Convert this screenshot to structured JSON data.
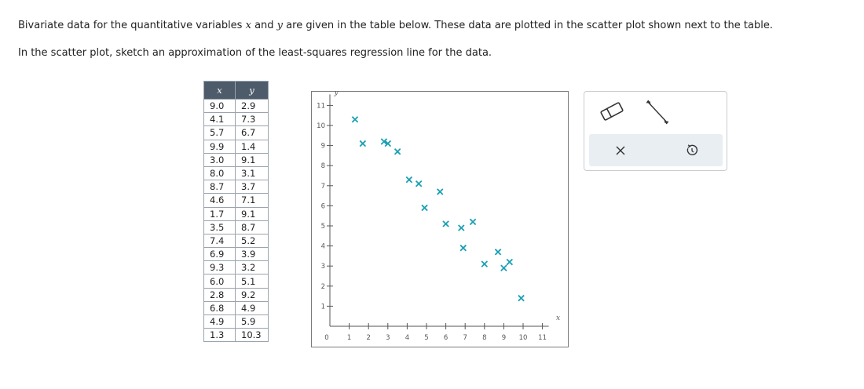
{
  "prompt": {
    "line1_prefix": "Bivariate data for the quantitative variables ",
    "var_x": "x",
    "line1_and": " and ",
    "var_y": "y",
    "line1_suffix": " are given in the table below. These data are plotted in the scatter plot shown next to the table.",
    "line2": "In the scatter plot, sketch an approximation of the least-squares regression line for the data."
  },
  "table": {
    "headers": [
      "x",
      "y"
    ],
    "rows": [
      [
        "9.0",
        "2.9"
      ],
      [
        "4.1",
        "7.3"
      ],
      [
        "5.7",
        "6.7"
      ],
      [
        "9.9",
        "1.4"
      ],
      [
        "3.0",
        "9.1"
      ],
      [
        "8.0",
        "3.1"
      ],
      [
        "8.7",
        "3.7"
      ],
      [
        "4.6",
        "7.1"
      ],
      [
        "1.7",
        "9.1"
      ],
      [
        "3.5",
        "8.7"
      ],
      [
        "7.4",
        "5.2"
      ],
      [
        "6.9",
        "3.9"
      ],
      [
        "9.3",
        "3.2"
      ],
      [
        "6.0",
        "5.1"
      ],
      [
        "2.8",
        "9.2"
      ],
      [
        "6.8",
        "4.9"
      ],
      [
        "4.9",
        "5.9"
      ],
      [
        "1.3",
        "10.3"
      ]
    ]
  },
  "chart_data": {
    "type": "scatter",
    "xlabel": "x",
    "ylabel": "y",
    "xlim": [
      0,
      11
    ],
    "ylim": [
      0,
      11
    ],
    "xticks": [
      "1",
      "2",
      "3",
      "4",
      "5",
      "6",
      "7",
      "8",
      "9",
      "10",
      "11"
    ],
    "yticks": [
      "1",
      "2",
      "3",
      "4",
      "5",
      "6",
      "7",
      "8",
      "9",
      "10",
      "11"
    ],
    "origin_label": "0",
    "grid": false,
    "marker": "x",
    "marker_color": "#1a9fb4",
    "points": [
      [
        9.0,
        2.9
      ],
      [
        4.1,
        7.3
      ],
      [
        5.7,
        6.7
      ],
      [
        9.9,
        1.4
      ],
      [
        3.0,
        9.1
      ],
      [
        8.0,
        3.1
      ],
      [
        8.7,
        3.7
      ],
      [
        4.6,
        7.1
      ],
      [
        1.7,
        9.1
      ],
      [
        3.5,
        8.7
      ],
      [
        7.4,
        5.2
      ],
      [
        6.9,
        3.9
      ],
      [
        9.3,
        3.2
      ],
      [
        6.0,
        5.1
      ],
      [
        2.8,
        9.2
      ],
      [
        6.8,
        4.9
      ],
      [
        4.9,
        5.9
      ],
      [
        1.3,
        10.3
      ]
    ]
  },
  "tools": {
    "eraser": "eraser-icon",
    "line": "line-tool-icon",
    "clear": "close-icon",
    "undo": "undo-icon"
  },
  "colors": {
    "table_header_bg": "#4d5b6b",
    "action_bar_bg": "#e9eef2"
  }
}
